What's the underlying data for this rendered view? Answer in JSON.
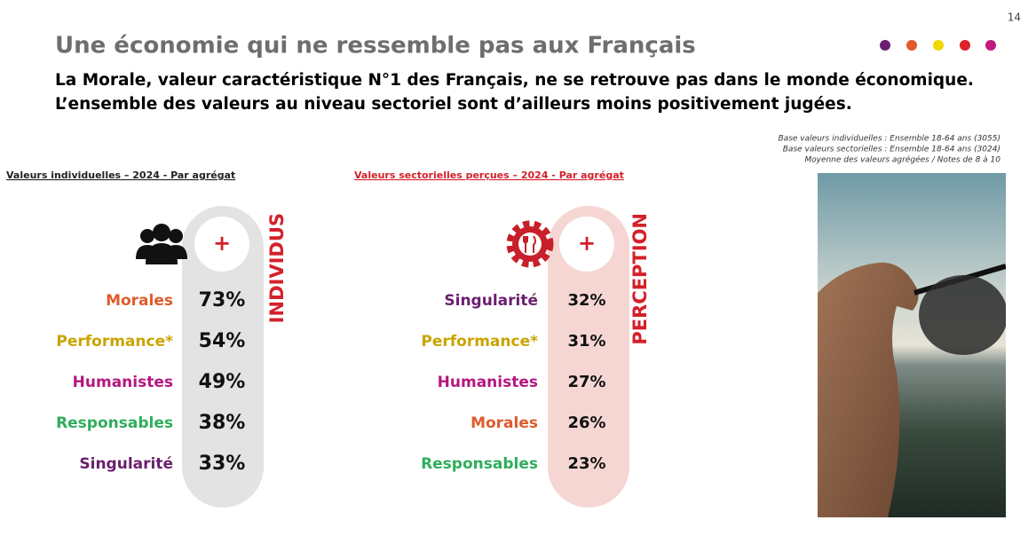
{
  "page_number": "14",
  "header": {
    "title": "Une économie qui ne ressemble pas aux Français",
    "subtitle": [
      "La Morale, valeur caractéristique N°1 des Français, ne se retrouve pas dans le monde économique.",
      "L’ensemble des valeurs au niveau sectoriel sont d’ailleurs moins positivement jugées."
    ]
  },
  "notes": [
    "Base valeurs individuelles : Ensemble 18-64 ans (3055)",
    "Base valeurs sectorielles : Ensemble 18-64 ans (3024)",
    "Moyenne des valeurs agrégées / Notes de 8 à 10"
  ],
  "panels": [
    {
      "heading": "Valeurs individuelles – 2024 - Par agrégat",
      "badge": "+",
      "vertical_label": "INDIVIDUS",
      "rows": [
        {
          "label": "Morales",
          "value": "73%",
          "color": "#e05a2b"
        },
        {
          "label": "Performance*",
          "value": "54%",
          "color": "#c9a400"
        },
        {
          "label": "Humanistes",
          "value": "49%",
          "color": "#b5177f"
        },
        {
          "label": "Responsables",
          "value": "38%",
          "color": "#2fae5b"
        },
        {
          "label": "Singularité",
          "value": "33%",
          "color": "#6a1f6e"
        }
      ]
    },
    {
      "heading": "Valeurs sectorielles perçues – 2024 - Par agrégat",
      "badge": "+",
      "vertical_label": "PERCEPTION",
      "rows": [
        {
          "label": "Singularité",
          "value": "32%",
          "color": "#6a1f6e"
        },
        {
          "label": "Performance*",
          "value": "31%",
          "color": "#c9a400"
        },
        {
          "label": "Humanistes",
          "value": "27%",
          "color": "#b5177f"
        },
        {
          "label": "Morales",
          "value": "26%",
          "color": "#e05a2b"
        },
        {
          "label": "Responsables",
          "value": "23%",
          "color": "#2fae5b"
        }
      ]
    }
  ]
}
